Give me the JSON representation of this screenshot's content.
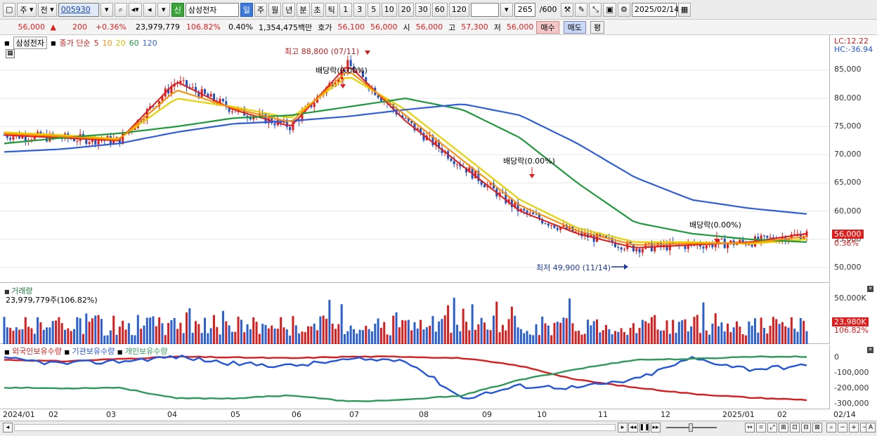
{
  "toolbar": {
    "mode_label": "주",
    "prev_label": "전",
    "code": "005930",
    "new_label": "신",
    "stock_name": "삼성전자",
    "periods": [
      "일",
      "주",
      "월",
      "년",
      "분",
      "초",
      "틱"
    ],
    "numbers": [
      "1",
      "3",
      "5",
      "10",
      "20",
      "30",
      "60",
      "120"
    ],
    "count_value": "265",
    "count_total": "/600",
    "date": "2025/02/14"
  },
  "info": {
    "price": "56,000",
    "change": "200",
    "change_pct": "+0.36%",
    "volume": "23,979,779",
    "volume_pct": "106.82%",
    "turnover_pct": "0.40%",
    "amount": "1,354,475백만",
    "bid_label": "호가",
    "ask": "56,100",
    "bid": "56,000",
    "open_label": "시",
    "open": "56,000",
    "high_label": "고",
    "high": "57,300",
    "low_label": "저",
    "low": "56,000",
    "buy_label": "매수",
    "sell_label": "매도",
    "avg_label": "평"
  },
  "price_panel": {
    "name_box": "삼성전자",
    "legend_prefix": "종가 단순",
    "ma": [
      {
        "period": "5",
        "color": "#e01e1e"
      },
      {
        "period": "10",
        "color": "#ff8c00"
      },
      {
        "period": "20",
        "color": "#e6d200"
      },
      {
        "period": "60",
        "color": "#1f9a3c"
      },
      {
        "period": "120",
        "color": "#2f5fd8"
      }
    ],
    "lc": "LC:12.22",
    "hc": "HC:-36.94",
    "high_note": "최고 88,800 (07/11)",
    "low_note": "최저 49,900 (11/14)",
    "dividend_note": "배당락(0.00%)",
    "current_badge": "56,000",
    "current_pct": "0.36%",
    "yticks": [
      "85,000",
      "80,000",
      "75,000",
      "70,000",
      "65,000",
      "60,000",
      "55,000",
      "50,000"
    ]
  },
  "volume_panel": {
    "title": "거래량",
    "value": "23,979,779주(106.82%)",
    "yticks": [
      "50,000K",
      "0"
    ],
    "badge": "23,980K",
    "badge_pct": "106.82%"
  },
  "holding_panel": {
    "series": [
      {
        "name": "외국인보유수량",
        "color": "#d81e1e"
      },
      {
        "name": "기관보유수량",
        "color": "#2255dd"
      },
      {
        "name": "개인보유수량",
        "color": "#2e9a5a"
      }
    ],
    "yticks": [
      "0",
      "-100,000",
      "-200,000",
      "-300,000"
    ]
  },
  "xaxis": {
    "labels": [
      "2024/01",
      "02",
      "03",
      "04",
      "05",
      "06",
      "07",
      "08",
      "09",
      "10",
      "11",
      "12",
      "2025/01",
      "02"
    ],
    "right_label": "02/14"
  },
  "chart_data": {
    "type": "line",
    "title": "",
    "x": [
      "2024/01",
      "02",
      "03",
      "04",
      "05",
      "06",
      "07",
      "08",
      "09",
      "10",
      "11",
      "12",
      "2025/01",
      "02",
      "02/14"
    ],
    "series": [
      {
        "name": "종가 단순 5",
        "values": [
          73500,
          73000,
          72500,
          83000,
          78000,
          75000,
          86000,
          76000,
          68000,
          60000,
          56000,
          53500,
          54000,
          54500,
          56000
        ]
      },
      {
        "name": "종가 단순 20",
        "values": [
          74000,
          73500,
          72800,
          80000,
          78500,
          76500,
          84000,
          78000,
          70000,
          62000,
          57000,
          54500,
          54500,
          54200,
          55000
        ]
      },
      {
        "name": "종가 단순 60",
        "values": [
          72000,
          73000,
          73800,
          75000,
          76500,
          77000,
          78500,
          80000,
          78000,
          73000,
          65000,
          58000,
          56000,
          55000,
          54500
        ]
      },
      {
        "name": "종가 단순 120",
        "values": [
          70500,
          71000,
          72000,
          74000,
          75500,
          76000,
          76800,
          78000,
          79000,
          77000,
          72000,
          66000,
          62000,
          60500,
          59500
        ]
      }
    ],
    "ylim": [
      48000,
      88500
    ],
    "high": {
      "value": 88800,
      "date": "07/11"
    },
    "low": {
      "value": 49900,
      "date": "11/14"
    }
  }
}
